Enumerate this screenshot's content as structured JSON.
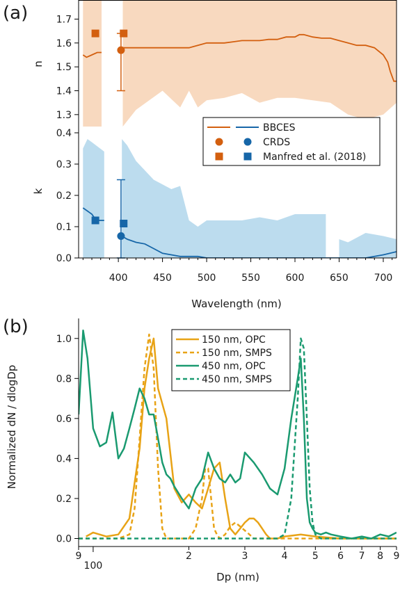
{
  "chart_data": [
    {
      "type": "line",
      "panel_label": "(a)",
      "xlabel": "Wavelength (nm)",
      "xlim": [
        355,
        715
      ],
      "x_ticks": [
        400,
        450,
        500,
        550,
        600,
        650,
        700
      ],
      "colors": {
        "n": "#d35f0f",
        "n_band": "#f8d9bf",
        "k": "#1666a8",
        "k_band": "#bcdcee"
      },
      "legend": {
        "entries": [
          "BBCES",
          "CRDS",
          "Manfred et al. (2018)"
        ],
        "placement": "inside, lower-right of top subplot"
      },
      "subplots": [
        {
          "ylabel": "n",
          "ylim": [
            1.25,
            1.78
          ],
          "y_ticks": [
            1.3,
            1.4,
            1.5,
            1.6,
            1.7
          ],
          "series": [
            {
              "name": "BBCES",
              "kind": "line",
              "segments": [
                {
                  "x": [
                    360,
                    364,
                    370,
                    376,
                    381
                  ],
                  "y": [
                    1.55,
                    1.54,
                    1.55,
                    1.56,
                    1.56
                  ]
                },
                {
                  "x": [
                    405,
                    410,
                    420,
                    430,
                    440,
                    450,
                    460,
                    470,
                    480,
                    490,
                    500,
                    510,
                    520,
                    530,
                    540,
                    550,
                    560,
                    570,
                    580,
                    590,
                    600,
                    605,
                    610,
                    620,
                    630,
                    640,
                    650,
                    660,
                    670,
                    680,
                    690,
                    700,
                    705,
                    708,
                    712,
                    715
                  ],
                  "y": [
                    1.58,
                    1.58,
                    1.58,
                    1.58,
                    1.58,
                    1.58,
                    1.58,
                    1.58,
                    1.58,
                    1.59,
                    1.6,
                    1.6,
                    1.6,
                    1.605,
                    1.61,
                    1.61,
                    1.61,
                    1.615,
                    1.615,
                    1.625,
                    1.625,
                    1.635,
                    1.635,
                    1.625,
                    1.62,
                    1.62,
                    1.61,
                    1.6,
                    1.59,
                    1.59,
                    1.58,
                    1.55,
                    1.52,
                    1.48,
                    1.44,
                    1.44
                  ]
                }
              ],
              "band": [
                {
                  "x": [
                    360,
                    381
                  ],
                  "lower": [
                    1.25,
                    1.25
                  ],
                  "upper": [
                    1.78,
                    1.78
                  ]
                },
                {
                  "x": [
                    405,
                    420,
                    450,
                    470,
                    480,
                    490,
                    500,
                    520,
                    540,
                    560,
                    580,
                    600,
                    620,
                    640,
                    660,
                    680,
                    700,
                    715
                  ],
                  "lower": [
                    1.25,
                    1.32,
                    1.4,
                    1.33,
                    1.4,
                    1.33,
                    1.36,
                    1.37,
                    1.39,
                    1.35,
                    1.37,
                    1.37,
                    1.36,
                    1.35,
                    1.3,
                    1.28,
                    1.3,
                    1.35
                  ],
                  "upper": [
                    1.78,
                    1.78,
                    1.78,
                    1.78,
                    1.78,
                    1.78,
                    1.78,
                    1.78,
                    1.78,
                    1.78,
                    1.78,
                    1.78,
                    1.78,
                    1.78,
                    1.78,
                    1.78,
                    1.78,
                    1.78
                  ]
                }
              ]
            },
            {
              "name": "CRDS",
              "kind": "point",
              "marker": "circle",
              "x": [
                403
              ],
              "y": [
                1.57
              ],
              "yerr_low": [
                1.4
              ],
              "yerr_high": [
                1.64
              ]
            },
            {
              "name": "Manfred et al. (2018)",
              "kind": "point",
              "marker": "square",
              "x": [
                374,
                406
              ],
              "y": [
                1.64,
                1.64
              ]
            }
          ]
        },
        {
          "ylabel": "k",
          "ylim": [
            0.0,
            0.42
          ],
          "y_ticks": [
            0.0,
            0.1,
            0.2,
            0.3,
            0.4
          ],
          "series": [
            {
              "name": "BBCES",
              "kind": "line",
              "segments": [
                {
                  "x": [
                    360,
                    365,
                    370,
                    375,
                    380,
                    384
                  ],
                  "y": [
                    0.16,
                    0.15,
                    0.14,
                    0.12,
                    0.12,
                    0.12
                  ]
                },
                {
                  "x": [
                    404,
                    410,
                    420,
                    430,
                    440,
                    450,
                    460,
                    470,
                    480,
                    490,
                    500,
                    520,
                    540,
                    560,
                    580,
                    600,
                    620,
                    640,
                    660,
                    680,
                    700,
                    715
                  ],
                  "y": [
                    0.07,
                    0.06,
                    0.05,
                    0.045,
                    0.03,
                    0.015,
                    0.01,
                    0.005,
                    0.005,
                    0.005,
                    0.0,
                    0.0,
                    0.0,
                    0.0,
                    0.0,
                    0.0,
                    0.0,
                    0.0,
                    0.0,
                    0.0,
                    0.01,
                    0.02
                  ]
                }
              ],
              "band": [
                {
                  "x": [
                    360,
                    365,
                    370,
                    384
                  ],
                  "lower": [
                    0.0,
                    0.0,
                    0.0,
                    0.0
                  ],
                  "upper": [
                    0.35,
                    0.38,
                    0.37,
                    0.34
                  ]
                },
                {
                  "x": [
                    404,
                    410,
                    420,
                    440,
                    460,
                    470,
                    480,
                    490,
                    500,
                    520,
                    540,
                    560,
                    580,
                    600,
                    620,
                    635
                  ],
                  "lower": [
                    0.0,
                    0.0,
                    0.0,
                    0.0,
                    0.0,
                    0.0,
                    0.0,
                    0.0,
                    0.0,
                    0.0,
                    0.0,
                    0.0,
                    0.0,
                    0.0,
                    0.0,
                    0.0
                  ],
                  "upper": [
                    0.38,
                    0.36,
                    0.31,
                    0.25,
                    0.22,
                    0.23,
                    0.12,
                    0.1,
                    0.12,
                    0.12,
                    0.12,
                    0.13,
                    0.12,
                    0.14,
                    0.14,
                    0.14
                  ]
                },
                {
                  "x": [
                    650,
                    660,
                    680,
                    700,
                    715
                  ],
                  "lower": [
                    0.0,
                    0.0,
                    0.0,
                    0.0,
                    0.0
                  ],
                  "upper": [
                    0.06,
                    0.05,
                    0.08,
                    0.07,
                    0.06
                  ]
                }
              ]
            },
            {
              "name": "CRDS",
              "kind": "point",
              "marker": "circle",
              "x": [
                403
              ],
              "y": [
                0.07
              ],
              "yerr_low": [
                0.0
              ],
              "yerr_high": [
                0.25
              ]
            },
            {
              "name": "Manfred et al. (2018)",
              "kind": "point",
              "marker": "square",
              "x": [
                374,
                406
              ],
              "y": [
                0.12,
                0.11
              ]
            }
          ]
        }
      ]
    },
    {
      "type": "line",
      "panel_label": "(b)",
      "xlabel": "Dp (nm)",
      "ylabel": "Normalized dN / dlogDp",
      "x_scale": "log",
      "xlim": [
        90,
        900
      ],
      "ylim": [
        -0.04,
        1.1
      ],
      "y_ticks": [
        0.0,
        0.2,
        0.4,
        0.6,
        0.8,
        1.0
      ],
      "x_ticks": [
        {
          "value": 90,
          "label": "9"
        },
        {
          "value": 100,
          "label": "100",
          "major": true
        },
        {
          "value": 200,
          "label": "2"
        },
        {
          "value": 300,
          "label": "3"
        },
        {
          "value": 400,
          "label": "4"
        },
        {
          "value": 500,
          "label": "5"
        },
        {
          "value": 600,
          "label": "6"
        },
        {
          "value": 700,
          "label": "7"
        },
        {
          "value": 800,
          "label": "8"
        },
        {
          "value": 900,
          "label": "9"
        }
      ],
      "legend": {
        "placement": "top-center"
      },
      "series": [
        {
          "name": "150 nm, OPC",
          "color": "#e8a316",
          "dashed": false,
          "x": [
            95,
            100,
            110,
            120,
            130,
            140,
            145,
            150,
            155,
            160,
            170,
            180,
            190,
            200,
            210,
            220,
            230,
            240,
            250,
            260,
            270,
            280,
            290,
            300,
            310,
            320,
            330,
            340,
            350,
            360,
            380,
            400,
            450,
            500,
            600,
            700,
            800,
            900
          ],
          "y": [
            0.01,
            0.03,
            0.01,
            0.02,
            0.1,
            0.45,
            0.75,
            0.9,
            1.0,
            0.75,
            0.6,
            0.25,
            0.18,
            0.22,
            0.18,
            0.15,
            0.25,
            0.35,
            0.38,
            0.2,
            0.05,
            0.02,
            0.05,
            0.08,
            0.1,
            0.1,
            0.08,
            0.05,
            0.02,
            0.0,
            0.0,
            0.01,
            0.02,
            0.01,
            0.0,
            0.0,
            0.0,
            0.0
          ]
        },
        {
          "name": "150 nm, SMPS",
          "color": "#e8a316",
          "dashed": true,
          "x": [
            90,
            120,
            130,
            135,
            140,
            145,
            150,
            155,
            160,
            165,
            170,
            180,
            200,
            210,
            220,
            225,
            230,
            235,
            240,
            245,
            250,
            260,
            270,
            280,
            290,
            300,
            310,
            320,
            330,
            340,
            400,
            900
          ],
          "y": [
            0.0,
            0.0,
            0.02,
            0.15,
            0.5,
            0.85,
            1.02,
            0.85,
            0.35,
            0.05,
            0.0,
            0.0,
            0.0,
            0.05,
            0.2,
            0.35,
            0.35,
            0.2,
            0.05,
            0.02,
            0.0,
            0.02,
            0.06,
            0.08,
            0.06,
            0.04,
            0.02,
            0.0,
            0.0,
            0.0,
            0.0,
            0.0
          ]
        },
        {
          "name": "450 nm, OPC",
          "color": "#1a9a70",
          "dashed": false,
          "x": [
            90,
            93,
            96,
            100,
            105,
            110,
            115,
            120,
            125,
            130,
            135,
            140,
            145,
            150,
            155,
            160,
            165,
            170,
            175,
            180,
            190,
            200,
            210,
            220,
            230,
            240,
            250,
            260,
            270,
            280,
            290,
            300,
            320,
            340,
            360,
            380,
            400,
            420,
            440,
            450,
            460,
            470,
            480,
            490,
            500,
            520,
            540,
            560,
            600,
            650,
            700,
            750,
            800,
            850,
            900
          ],
          "y": [
            0.62,
            1.04,
            0.9,
            0.55,
            0.46,
            0.48,
            0.63,
            0.4,
            0.45,
            0.55,
            0.65,
            0.75,
            0.7,
            0.62,
            0.62,
            0.5,
            0.38,
            0.32,
            0.3,
            0.26,
            0.2,
            0.15,
            0.25,
            0.3,
            0.43,
            0.35,
            0.3,
            0.28,
            0.32,
            0.28,
            0.3,
            0.43,
            0.38,
            0.32,
            0.25,
            0.22,
            0.35,
            0.6,
            0.8,
            0.9,
            0.6,
            0.2,
            0.08,
            0.05,
            0.03,
            0.02,
            0.03,
            0.02,
            0.01,
            0.0,
            0.01,
            0.0,
            0.02,
            0.01,
            0.03
          ]
        },
        {
          "name": "450 nm, SMPS",
          "color": "#1a9a70",
          "dashed": true,
          "x": [
            90,
            380,
            400,
            420,
            440,
            450,
            460,
            470,
            480,
            490,
            500,
            520,
            900
          ],
          "y": [
            0.0,
            0.0,
            0.02,
            0.2,
            0.7,
            1.0,
            0.95,
            0.6,
            0.25,
            0.08,
            0.02,
            0.0,
            0.0
          ]
        }
      ]
    }
  ]
}
